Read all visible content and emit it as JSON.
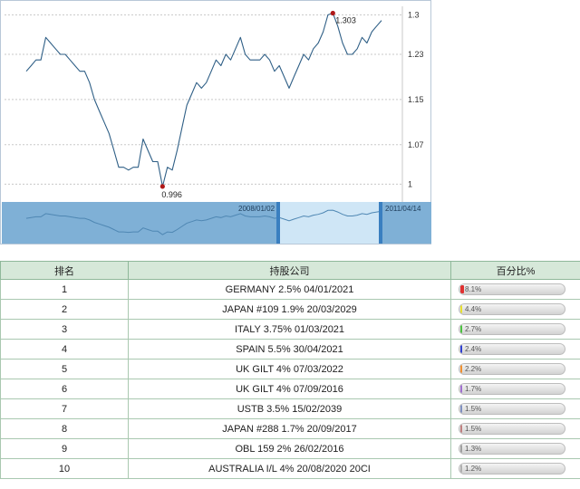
{
  "chart_data": {
    "type": "line",
    "title": "",
    "xlabel": "",
    "ylabel": "",
    "ylim": [
      0.975,
      1.315
    ],
    "y_ticks": [
      "1",
      "1.07",
      "1.15",
      "1.23",
      "1.3"
    ],
    "y_tick_values": [
      1.0,
      1.07,
      1.15,
      1.23,
      1.3
    ],
    "grid": true,
    "series": [
      {
        "values": [
          1.2,
          1.21,
          1.22,
          1.22,
          1.26,
          1.25,
          1.24,
          1.23,
          1.23,
          1.22,
          1.21,
          1.2,
          1.2,
          1.18,
          1.15,
          1.13,
          1.11,
          1.09,
          1.06,
          1.03,
          1.03,
          1.025,
          1.03,
          1.03,
          1.08,
          1.06,
          1.04,
          1.04,
          0.996,
          1.03,
          1.025,
          1.06,
          1.1,
          1.14,
          1.16,
          1.18,
          1.17,
          1.18,
          1.2,
          1.22,
          1.21,
          1.23,
          1.22,
          1.24,
          1.26,
          1.23,
          1.22,
          1.22,
          1.22,
          1.23,
          1.22,
          1.2,
          1.21,
          1.19,
          1.17,
          1.19,
          1.21,
          1.23,
          1.22,
          1.24,
          1.25,
          1.27,
          1.3,
          1.303,
          1.28,
          1.25,
          1.23,
          1.23,
          1.24,
          1.26,
          1.25,
          1.27,
          1.28,
          1.29
        ]
      }
    ],
    "annotations": [
      {
        "label": "1.303",
        "kind": "max",
        "value": 1.303
      },
      {
        "label": "0.996",
        "kind": "min",
        "value": 0.996
      }
    ],
    "navigator": {
      "start_label": "2008/01/02",
      "end_label": "2011/04/14"
    }
  },
  "table": {
    "headers": {
      "rank": "排名",
      "company": "持股公司",
      "percent": "百分比%"
    },
    "rows": [
      {
        "rank": "1",
        "company": "GERMANY 2.5% 04/01/2021",
        "pct_label": "8.1%",
        "pct": 8.1,
        "color": "#e03030"
      },
      {
        "rank": "2",
        "company": "JAPAN #109 1.9% 20/03/2029",
        "pct_label": "4.4%",
        "pct": 4.4,
        "color": "#e8e030"
      },
      {
        "rank": "3",
        "company": "ITALY 3.75% 01/03/2021",
        "pct_label": "2.7%",
        "pct": 2.7,
        "color": "#4cc040"
      },
      {
        "rank": "4",
        "company": "SPAIN 5.5% 30/04/2021",
        "pct_label": "2.4%",
        "pct": 2.4,
        "color": "#3040d0"
      },
      {
        "rank": "5",
        "company": "UK GILT 4% 07/03/2022",
        "pct_label": "2.2%",
        "pct": 2.2,
        "color": "#f09030"
      },
      {
        "rank": "6",
        "company": "UK GILT 4% 07/09/2016",
        "pct_label": "1.7%",
        "pct": 1.7,
        "color": "#a070d0"
      },
      {
        "rank": "7",
        "company": "USTB 3.5% 15/02/2039",
        "pct_label": "1.5%",
        "pct": 1.5,
        "color": "#8090c0"
      },
      {
        "rank": "8",
        "company": "JAPAN #288 1.7% 20/09/2017",
        "pct_label": "1.5%",
        "pct": 1.5,
        "color": "#c08080"
      },
      {
        "rank": "9",
        "company": "OBL 159 2% 26/02/2016",
        "pct_label": "1.3%",
        "pct": 1.3,
        "color": "#a0a0a0"
      },
      {
        "rank": "10",
        "company": "AUSTRALIA I/L 4% 20/08/2020 20CI",
        "pct_label": "1.2%",
        "pct": 1.2,
        "color": "#b0b0b0"
      }
    ]
  }
}
